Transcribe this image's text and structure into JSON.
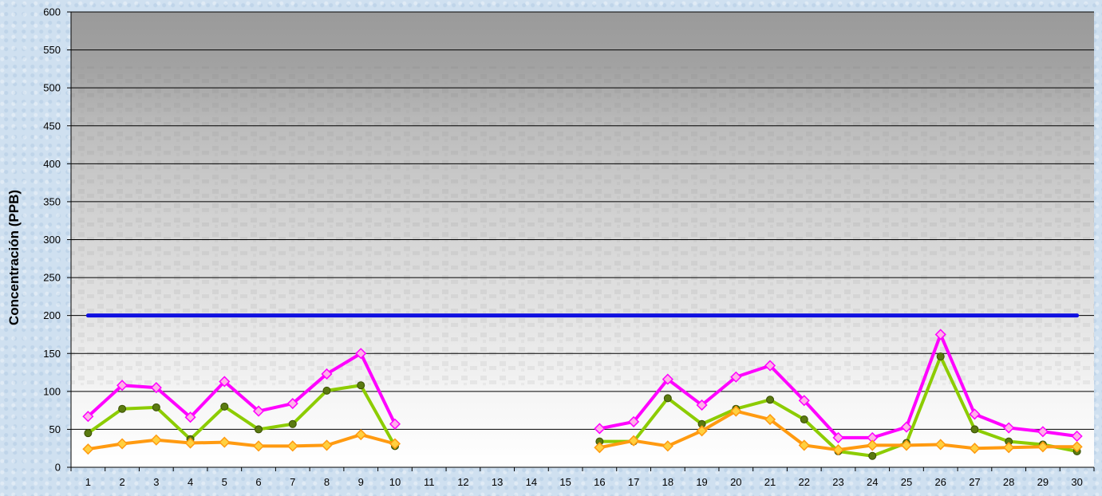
{
  "chart_data": {
    "type": "line",
    "title": "",
    "xlabel": "",
    "ylabel": "Concentración  (PPB)",
    "ylim": [
      0,
      600
    ],
    "yticks": [
      0,
      50,
      100,
      150,
      200,
      250,
      300,
      350,
      400,
      450,
      500,
      550,
      600
    ],
    "categories": [
      "1",
      "2",
      "3",
      "4",
      "5",
      "6",
      "7",
      "8",
      "9",
      "10",
      "11",
      "12",
      "13",
      "14",
      "15",
      "16",
      "17",
      "18",
      "19",
      "20",
      "21",
      "22",
      "23",
      "24",
      "25",
      "26",
      "27",
      "28",
      "29",
      "30"
    ],
    "grid": true,
    "legend": "none",
    "series": [
      {
        "key": "limit",
        "color": "#1010e0",
        "marker": "none",
        "values": [
          200,
          200,
          200,
          200,
          200,
          200,
          200,
          200,
          200,
          200,
          200,
          200,
          200,
          200,
          200,
          200,
          200,
          200,
          200,
          200,
          200,
          200,
          200,
          200,
          200,
          200,
          200,
          200,
          200,
          200
        ]
      },
      {
        "key": "magenta",
        "color": "#ff00ff",
        "marker": "diamond",
        "marker_fill": "#ffb0e8",
        "values": [
          67,
          108,
          105,
          66,
          113,
          74,
          84,
          123,
          150,
          57,
          null,
          null,
          null,
          null,
          null,
          51,
          60,
          116,
          82,
          119,
          134,
          88,
          39,
          39,
          53,
          175,
          70,
          52,
          47,
          41
        ]
      },
      {
        "key": "green",
        "color": "#8ccc00",
        "marker": "circle",
        "marker_fill": "#5a7a10",
        "values": [
          45,
          77,
          79,
          37,
          80,
          50,
          57,
          101,
          108,
          28,
          null,
          null,
          null,
          null,
          null,
          34,
          34,
          91,
          57,
          77,
          89,
          63,
          21,
          15,
          32,
          146,
          50,
          34,
          30,
          21
        ]
      },
      {
        "key": "orange",
        "color": "#ff9a10",
        "marker": "diamond",
        "marker_fill": "#ffd040",
        "values": [
          24,
          31,
          36,
          32,
          33,
          28,
          28,
          29,
          43,
          31,
          null,
          null,
          null,
          null,
          null,
          26,
          35,
          28,
          48,
          74,
          63,
          29,
          23,
          29,
          29,
          30,
          25,
          26,
          27,
          27
        ]
      }
    ]
  }
}
